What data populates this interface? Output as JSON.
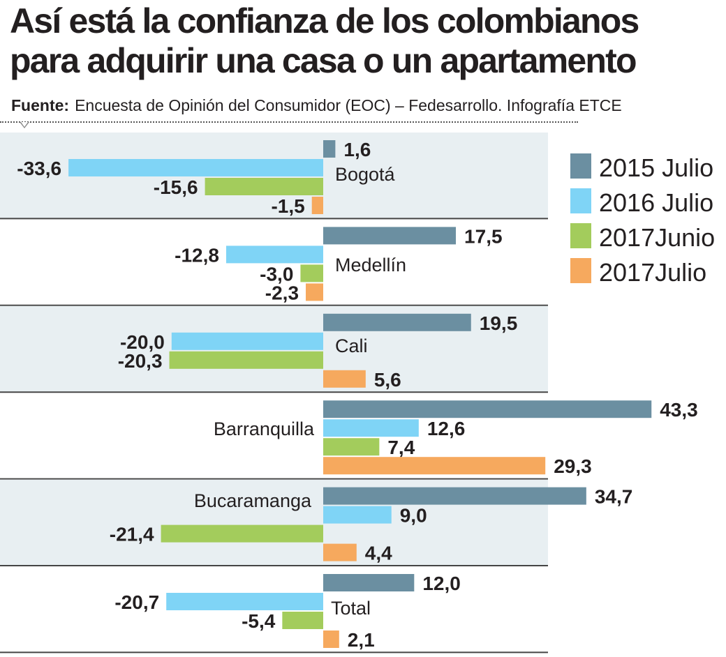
{
  "title": "Así está la confianza de los colombianos para adquirir una casa o un apartamento",
  "source": {
    "label": "Fuente:",
    "text": "Encuesta de Opinión del Consumidor (EOC) – Fedesarrollo. Infografía ETCE"
  },
  "colors": {
    "series": [
      "#6b8fa1",
      "#7fd4f6",
      "#a3cc5c",
      "#f6a95e"
    ],
    "band": "#e8eff2",
    "separator": "#444444"
  },
  "chart_data": {
    "type": "bar",
    "orientation": "horizontal",
    "categories": [
      "Bogotá",
      "Medellín",
      "Cali",
      "Barranquilla",
      "Bucaramanga",
      "Total"
    ],
    "series": [
      {
        "name": "2015 Julio",
        "values": [
          1.6,
          17.5,
          19.5,
          43.3,
          34.7,
          12.0
        ]
      },
      {
        "name": "2016 Julio",
        "values": [
          -33.6,
          -12.8,
          -20.0,
          12.6,
          9.0,
          -20.7
        ]
      },
      {
        "name": "2017Junio",
        "values": [
          -15.6,
          -3.0,
          -20.3,
          7.4,
          -21.4,
          -5.4
        ]
      },
      {
        "name": "2017Julio",
        "values": [
          -1.5,
          -2.3,
          5.6,
          29.3,
          4.4,
          2.1
        ]
      }
    ],
    "value_labels": [
      [
        "1,6",
        "17,5",
        "19,5",
        "43,3",
        "34,7",
        "12,0"
      ],
      [
        "-33,6",
        "-12,8",
        "-20,0",
        "12,6",
        "9,0",
        "-20,7"
      ],
      [
        "-15,6",
        "-3,0",
        "-20,3",
        "7,4",
        "-21,4",
        "-5,4"
      ],
      [
        "-1,5",
        "-2,3",
        "5,6",
        "29,3",
        "4,4",
        "2,1"
      ]
    ],
    "legend_position": "right",
    "grid": false
  }
}
